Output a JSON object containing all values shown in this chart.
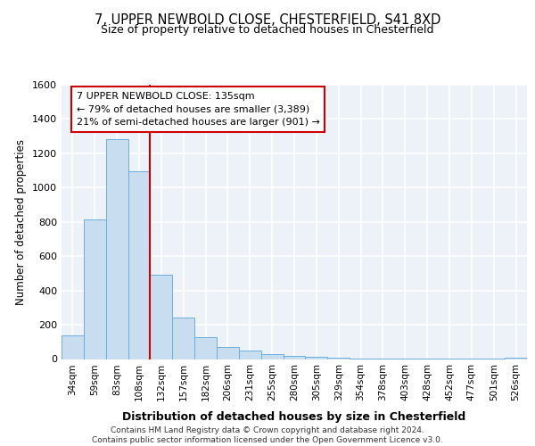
{
  "title1": "7, UPPER NEWBOLD CLOSE, CHESTERFIELD, S41 8XD",
  "title2": "Size of property relative to detached houses in Chesterfield",
  "xlabel": "Distribution of detached houses by size in Chesterfield",
  "ylabel": "Number of detached properties",
  "bar_color": "#c8ddf0",
  "bar_edge_color": "#6aaedd",
  "categories": [
    "34sqm",
    "59sqm",
    "83sqm",
    "108sqm",
    "132sqm",
    "157sqm",
    "182sqm",
    "206sqm",
    "231sqm",
    "255sqm",
    "280sqm",
    "305sqm",
    "329sqm",
    "354sqm",
    "378sqm",
    "403sqm",
    "428sqm",
    "452sqm",
    "477sqm",
    "501sqm",
    "526sqm"
  ],
  "values": [
    137,
    812,
    1285,
    1095,
    490,
    242,
    128,
    72,
    48,
    28,
    18,
    12,
    8,
    5,
    3,
    2,
    1,
    1,
    1,
    1,
    10
  ],
  "ylim": [
    0,
    1600
  ],
  "yticks": [
    0,
    200,
    400,
    600,
    800,
    1000,
    1200,
    1400,
    1600
  ],
  "property_line_x": 4.0,
  "annotation_title": "7 UPPER NEWBOLD CLOSE: 135sqm",
  "annotation_line1": "← 79% of detached houses are smaller (3,389)",
  "annotation_line2": "21% of semi-detached houses are larger (901) →",
  "footer1": "Contains HM Land Registry data © Crown copyright and database right 2024.",
  "footer2": "Contains public sector information licensed under the Open Government Licence v3.0.",
  "plot_bg": "#edf2f8",
  "grid_color": "#ffffff",
  "vline_color": "#cc0000",
  "annot_box_color": "#cc0000"
}
